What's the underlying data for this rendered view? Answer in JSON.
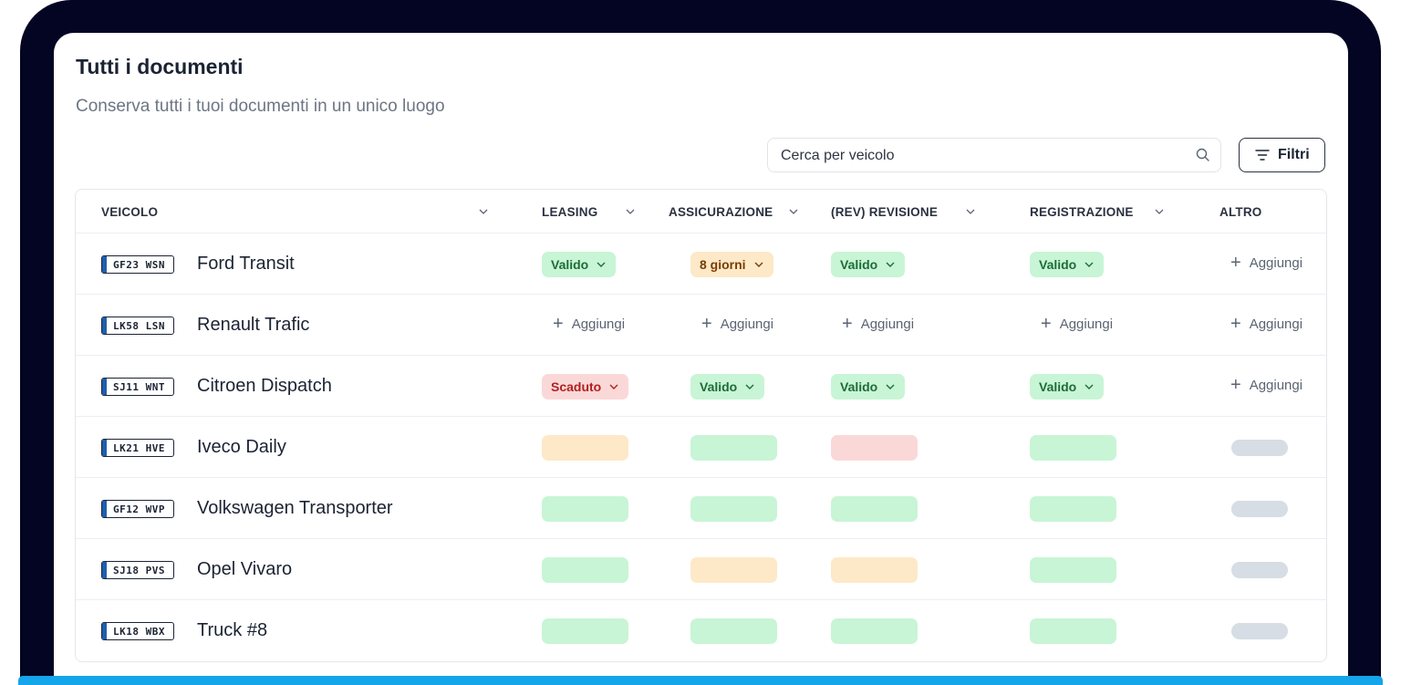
{
  "page": {
    "title": "Tutti i documenti",
    "subtitle": "Conserva tutti i tuoi documenti in un unico luogo"
  },
  "search": {
    "placeholder": "Cerca per veicolo"
  },
  "filter": {
    "label": "Filtri"
  },
  "columns": {
    "veicolo": "VEICOLO",
    "leasing": "LEASING",
    "assicurazione": "ASSICURAZIONE",
    "revisione": "(REV) REVISIONE",
    "registrazione": "REGISTRAZIONE",
    "altro": "ALTRO"
  },
  "status_colors": {
    "valid": "#c8f5d5",
    "warning": "#fde9c8",
    "expired": "#fbd8d8",
    "placeholder": "#d6dde4"
  },
  "rows": [
    {
      "plate": "GF23 WSN",
      "name": "Ford Transit",
      "leasing": "Valido",
      "assicurazione": "8 giorni",
      "revisione": "Valido",
      "registrazione": "Valido",
      "altro": "Aggiungi"
    },
    {
      "plate": "LK58 LSN",
      "name": "Renault Trafic",
      "leasing": "Aggiungi",
      "assicurazione": "Aggiungi",
      "revisione": "Aggiungi",
      "registrazione": "Aggiungi",
      "altro": "Aggiungi"
    },
    {
      "plate": "SJ11 WNT",
      "name": "Citroen Dispatch",
      "leasing": "Scaduto",
      "assicurazione": "Valido",
      "revisione": "Valido",
      "registrazione": "Valido",
      "altro": "Aggiungi"
    },
    {
      "plate": "LK21 HVE",
      "name": "Iveco Daily"
    },
    {
      "plate": "GF12 WVP",
      "name": "Volkswagen Transporter"
    },
    {
      "plate": "SJ18 PVS",
      "name": "Opel Vivaro"
    },
    {
      "plate": "LK18 WBX",
      "name": "Truck #8"
    }
  ]
}
